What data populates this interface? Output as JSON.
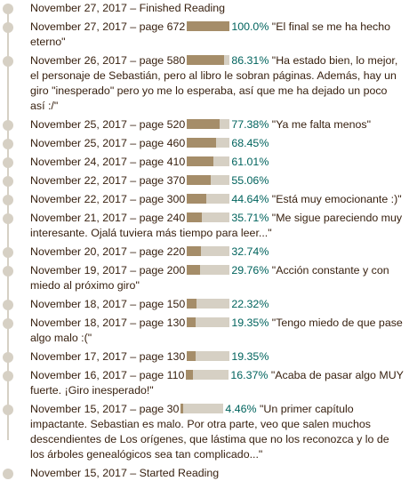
{
  "colors": {
    "bar_fill": "#a58d69",
    "bar_track": "#d6d0c4",
    "percent_text": "#00635d",
    "text": "#382110",
    "dot": "#d6d0c4"
  },
  "entries": [
    {
      "date": "November 27, 2017",
      "text": "Finished Reading"
    },
    {
      "date": "November 27, 2017",
      "page": "page 672",
      "percent": "100.0%",
      "progress": 1.0,
      "comment": "\"El final se me ha hecho eterno\""
    },
    {
      "date": "November 26, 2017",
      "page": "page 580",
      "percent": "86.31%",
      "progress": 0.8631,
      "comment": "\"Ha estado bien, lo mejor, el personaje de Sebastián, pero al libro le sobran páginas. Además, hay un giro \"inesperado\" pero yo me lo esperaba, así que me ha dejado un poco así :/\""
    },
    {
      "date": "November 25, 2017",
      "page": "page 520",
      "percent": "77.38%",
      "progress": 0.7738,
      "comment": "\"Ya me falta menos\""
    },
    {
      "date": "November 25, 2017",
      "page": "page 460",
      "percent": "68.45%",
      "progress": 0.6845,
      "comment": ""
    },
    {
      "date": "November 24, 2017",
      "page": "page 410",
      "percent": "61.01%",
      "progress": 0.6101,
      "comment": ""
    },
    {
      "date": "November 22, 2017",
      "page": "page 370",
      "percent": "55.06%",
      "progress": 0.5506,
      "comment": ""
    },
    {
      "date": "November 22, 2017",
      "page": "page 300",
      "percent": "44.64%",
      "progress": 0.4464,
      "comment": "\"Está muy emocionante :)\""
    },
    {
      "date": "November 21, 2017",
      "page": "page 240",
      "percent": "35.71%",
      "progress": 0.3571,
      "comment": "\"Me sigue pareciendo muy interesante. Ojalá tuviera más tiempo para leer...\""
    },
    {
      "date": "November 20, 2017",
      "page": "page 220",
      "percent": "32.74%",
      "progress": 0.3274,
      "comment": ""
    },
    {
      "date": "November 19, 2017",
      "page": "page 200",
      "percent": "29.76%",
      "progress": 0.2976,
      "comment": "\"Acción constante y con miedo al próximo giro\""
    },
    {
      "date": "November 18, 2017",
      "page": "page 150",
      "percent": "22.32%",
      "progress": 0.2232,
      "comment": ""
    },
    {
      "date": "November 18, 2017",
      "page": "page 130",
      "percent": "19.35%",
      "progress": 0.1935,
      "comment": "\"Tengo miedo de que pase algo malo :(\""
    },
    {
      "date": "November 17, 2017",
      "page": "page 130",
      "percent": "19.35%",
      "progress": 0.1935,
      "comment": ""
    },
    {
      "date": "November 16, 2017",
      "page": "page 110",
      "percent": "16.37%",
      "progress": 0.1637,
      "comment": "\"Acaba de pasar algo MUY fuerte. ¡Giro inesperado!\""
    },
    {
      "date": "November 15, 2017",
      "page": "page 30",
      "percent": "4.46%",
      "progress": 0.0446,
      "comment": "\"Un primer capítulo impactante. Sebastian es malo. Por otra parte, veo que salen muchos descendientes de Los orígenes, que lástima que no los reconozca y lo de los árboles genealógicos sea tan complicado...\""
    },
    {
      "date": "November 15, 2017",
      "text": "Started Reading"
    }
  ]
}
